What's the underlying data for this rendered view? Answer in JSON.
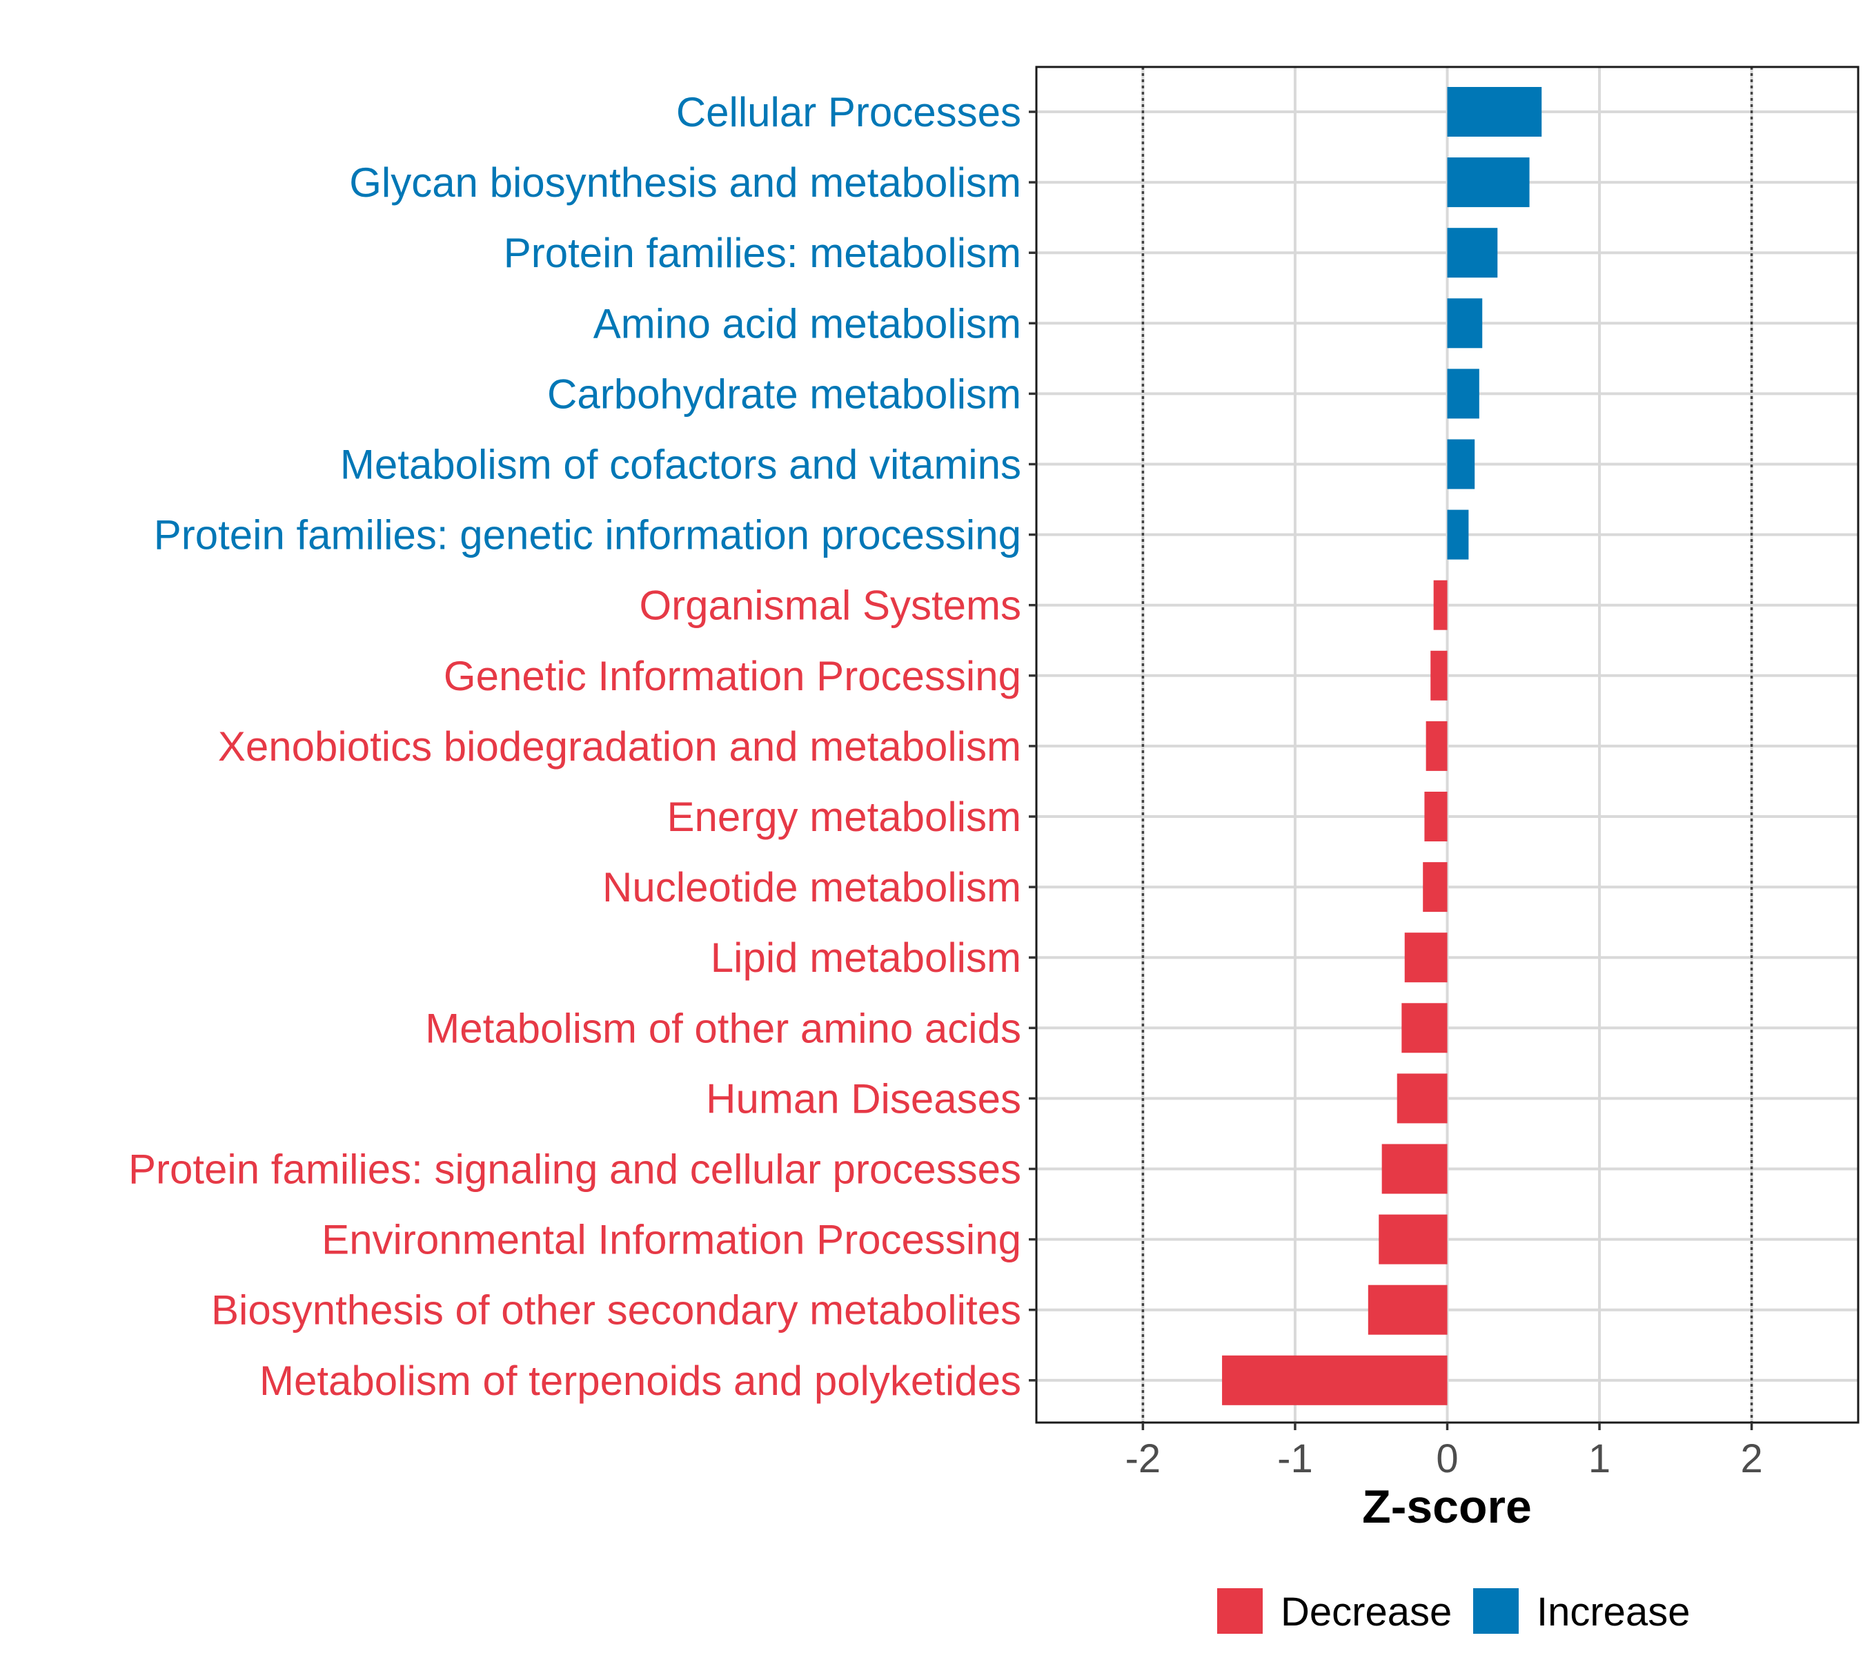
{
  "chart_data": {
    "type": "bar",
    "orientation": "horizontal",
    "title": "",
    "xlabel": "Z-score",
    "ylabel": "",
    "xlim": [
      -2.7,
      2.7
    ],
    "x_ticks": [
      -2,
      -1,
      0,
      1,
      2
    ],
    "x_tick_labels": [
      "-2",
      "-1",
      "0",
      "1",
      "2"
    ],
    "reference_lines": [
      -2,
      2
    ],
    "grid": true,
    "legend_position": "bottom",
    "categories": [
      "Cellular Processes",
      "Glycan biosynthesis and metabolism",
      "Protein families: metabolism",
      "Amino acid metabolism",
      "Carbohydrate metabolism",
      "Metabolism of cofactors and vitamins",
      "Protein families: genetic information processing",
      "Organismal Systems",
      "Genetic Information Processing",
      "Xenobiotics biodegradation and metabolism",
      "Energy metabolism",
      "Nucleotide metabolism",
      "Lipid metabolism",
      "Metabolism of other amino acids",
      "Human Diseases",
      "Protein families: signaling and cellular processes",
      "Environmental Information Processing",
      "Biosynthesis of other secondary metabolites",
      "Metabolism of terpenoids and polyketides"
    ],
    "values": [
      0.62,
      0.54,
      0.33,
      0.23,
      0.21,
      0.18,
      0.14,
      -0.09,
      -0.11,
      -0.14,
      -0.15,
      -0.16,
      -0.28,
      -0.3,
      -0.33,
      -0.43,
      -0.45,
      -0.52,
      -1.48
    ],
    "groups": [
      "Increase",
      "Increase",
      "Increase",
      "Increase",
      "Increase",
      "Increase",
      "Increase",
      "Decrease",
      "Decrease",
      "Decrease",
      "Decrease",
      "Decrease",
      "Decrease",
      "Decrease",
      "Decrease",
      "Decrease",
      "Decrease",
      "Decrease",
      "Decrease"
    ],
    "legend": [
      {
        "name": "Decrease",
        "color": "#E63946"
      },
      {
        "name": "Increase",
        "color": "#0077B6"
      }
    ]
  }
}
